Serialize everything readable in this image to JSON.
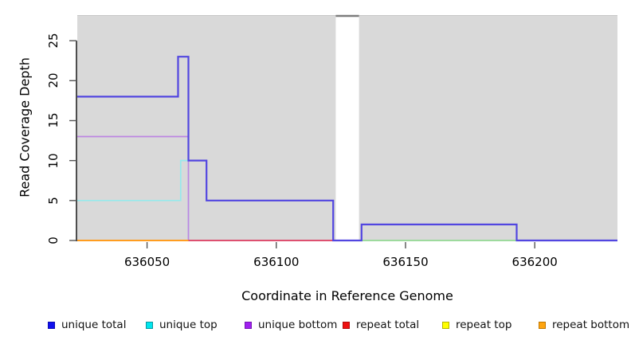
{
  "chart_data": {
    "type": "line",
    "subtype": "step-coverage-plot",
    "title": "",
    "xlabel": "Coordinate in Reference Genome",
    "ylabel": "Read Coverage Depth",
    "xlim": [
      636023,
      636232
    ],
    "ylim": [
      0,
      28.2
    ],
    "grid": "off",
    "x_ticks": [
      {
        "value": 636050,
        "label": "636050"
      },
      {
        "value": 636100,
        "label": "636100"
      },
      {
        "value": 636150,
        "label": "636150"
      },
      {
        "value": 636200,
        "label": "636200"
      }
    ],
    "y_ticks": [
      {
        "value": 0,
        "label": "0"
      },
      {
        "value": 5,
        "label": "5"
      },
      {
        "value": 10,
        "label": "10"
      },
      {
        "value": 15,
        "label": "15"
      },
      {
        "value": 20,
        "label": "20"
      },
      {
        "value": 25,
        "label": "25"
      }
    ],
    "axis": {
      "line_color": "#222222",
      "tick_color": "#555555"
    },
    "background": {
      "panel_color": "#d9d9d9",
      "panel_top_edge_color": "#c6c6c6",
      "regions": [
        {
          "x0": 636023,
          "x1": 636123
        },
        {
          "x0": 636132,
          "x1": 636232
        }
      ],
      "gap": {
        "x0": 636123,
        "x1": 636132,
        "top_marker_color": "#7d7d7d"
      }
    },
    "series": [
      {
        "name": "unique top",
        "color": "#97e9ec",
        "width": 1.7,
        "draw_order": 1,
        "steps": [
          [
            636023,
            5
          ],
          [
            636063,
            10
          ],
          [
            636066,
            0
          ]
        ],
        "xend": 636066
      },
      {
        "name": "unique bottom",
        "color": "#bd85e2",
        "width": 1.7,
        "draw_order": 2,
        "steps": [
          [
            636023,
            13
          ],
          [
            636066,
            0
          ]
        ],
        "xend": 636122
      },
      {
        "name": "unique total",
        "color": "#5246e0",
        "width": 2.2,
        "draw_order": 4,
        "steps": [
          [
            636023,
            18
          ],
          [
            636062,
            23
          ],
          [
            636066,
            10
          ],
          [
            636073,
            5
          ],
          [
            636122,
            0
          ],
          [
            636133,
            2
          ],
          [
            636193,
            0
          ]
        ],
        "xend": 636232
      }
    ],
    "zero_level_segments": [
      {
        "series": "repeat bottom",
        "x0": 636023,
        "x1": 636066,
        "y": 0,
        "color": "#ff9d20",
        "width": 2.0
      },
      {
        "series": "repeat total",
        "x0": 636066,
        "x1": 636122,
        "y": 0,
        "color": "#dd5070",
        "width": 2.0
      },
      {
        "series": "repeat top + unique top (blended)",
        "x0": 636133,
        "x1": 636193,
        "y": 0,
        "color": "#93d793",
        "width": 1.8
      }
    ]
  },
  "legend": {
    "items": [
      {
        "label": "unique total",
        "fill": "#1010ee",
        "border": "#0b0bb5"
      },
      {
        "label": "unique top",
        "fill": "#00e6ee",
        "border": "#0897a0"
      },
      {
        "label": "unique bottom",
        "fill": "#a020f0",
        "border": "#7716b4"
      },
      {
        "label": "repeat total",
        "fill": "#ee1111",
        "border": "#b00b0b"
      },
      {
        "label": "repeat top",
        "fill": "#ffff00",
        "border": "#b4b400"
      },
      {
        "label": "repeat bottom",
        "fill": "#ffa510",
        "border": "#c07700"
      }
    ]
  }
}
